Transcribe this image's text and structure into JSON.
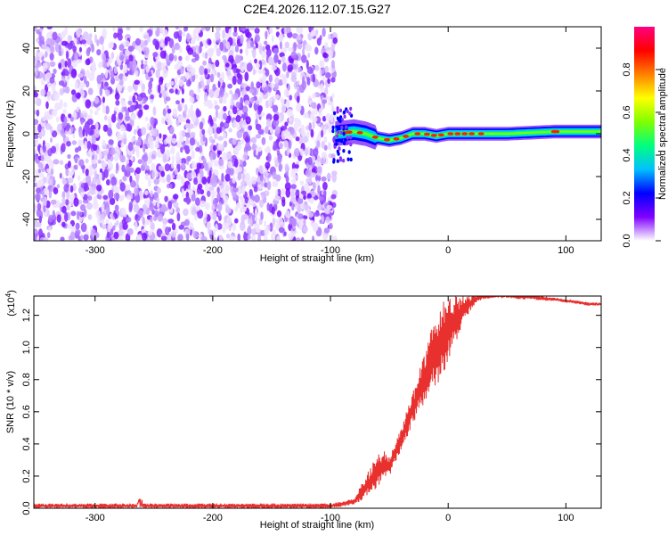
{
  "title": "C2E4.2026.112.07.15.G27",
  "chart_data": [
    {
      "type": "heatmap",
      "name": "spectrogram",
      "title": "C2E4.2026.112.07.15.G27",
      "xlabel": "Height of straight line (km)",
      "ylabel": "Frequency (Hz)",
      "xlim": [
        -352,
        130
      ],
      "ylim": [
        -50,
        50
      ],
      "x_ticks": [
        -300,
        -200,
        -100,
        0,
        100
      ],
      "x_tick_labels": [
        "-300",
        "-200",
        "-100",
        "0",
        "100"
      ],
      "y_ticks": [
        -40,
        -20,
        0,
        20,
        40
      ],
      "y_tick_labels": [
        "-40",
        "-20",
        "0",
        "20",
        "40"
      ],
      "noise_region_x": [
        -352,
        -96
      ],
      "signal_region_x": [
        -96,
        130
      ],
      "signal_frequency_track": [
        {
          "x": -96,
          "y": 0
        },
        {
          "x": -80,
          "y": 1
        },
        {
          "x": -70,
          "y": 0
        },
        {
          "x": -60,
          "y": -2
        },
        {
          "x": -50,
          "y": -3
        },
        {
          "x": -40,
          "y": -2
        },
        {
          "x": -30,
          "y": 0
        },
        {
          "x": -20,
          "y": 0
        },
        {
          "x": -10,
          "y": -1
        },
        {
          "x": 0,
          "y": 0
        },
        {
          "x": 20,
          "y": 0
        },
        {
          "x": 50,
          "y": 0
        },
        {
          "x": 90,
          "y": 1
        },
        {
          "x": 130,
          "y": 1
        }
      ],
      "colorbar": {
        "label": "Normalized spectral amplitude",
        "range": [
          0,
          1
        ],
        "ticks": [
          0.0,
          0.2,
          0.4,
          0.6,
          0.8
        ],
        "tick_labels": [
          "0.0",
          "0.2",
          "0.4",
          "0.6",
          "0.8"
        ],
        "colors": [
          "#ffffff",
          "#8000ff",
          "#0000ff",
          "#00c0ff",
          "#00ff80",
          "#80ff00",
          "#ffff00",
          "#ff8000",
          "#ff0000",
          "#ff0080"
        ]
      }
    },
    {
      "type": "line",
      "name": "snr",
      "xlabel": "Height of straight line (km)",
      "ylabel": "SNR (10 * v/v)",
      "y_scale_label": "(x10",
      "y_scale_exponent": "4",
      "y_scale_suffix": ")",
      "xlim": [
        -352,
        130
      ],
      "ylim": [
        0,
        1.32
      ],
      "x_ticks": [
        -300,
        -200,
        -100,
        0,
        100
      ],
      "x_tick_labels": [
        "-300",
        "-200",
        "-100",
        "0",
        "100"
      ],
      "y_ticks": [
        0.0,
        0.2,
        0.4,
        0.6,
        0.8,
        1.0,
        1.2
      ],
      "y_tick_labels": [
        "0.0",
        "0.2",
        "0.4",
        "0.6",
        "0.8",
        "1.0",
        "1.2"
      ],
      "series_color": "#e8302e",
      "envelope": {
        "x": [
          -352,
          -260,
          -100,
          -80,
          -70,
          -60,
          -55,
          -50,
          -45,
          -40,
          -35,
          -30,
          -25,
          -20,
          -15,
          -10,
          -5,
          0,
          5,
          10,
          15,
          20,
          25,
          30,
          40,
          50,
          60,
          70,
          80,
          90,
          100,
          110,
          120,
          130
        ],
        "lower": [
          0.0,
          0.0,
          0.0,
          0.02,
          0.06,
          0.12,
          0.18,
          0.2,
          0.28,
          0.36,
          0.44,
          0.52,
          0.6,
          0.64,
          0.7,
          0.76,
          0.82,
          0.9,
          1.0,
          1.1,
          1.18,
          1.24,
          1.28,
          1.3,
          1.31,
          1.31,
          1.3,
          1.3,
          1.29,
          1.29,
          1.28,
          1.27,
          1.26,
          1.26
        ],
        "upper": [
          0.03,
          0.03,
          0.03,
          0.06,
          0.2,
          0.34,
          0.36,
          0.32,
          0.4,
          0.5,
          0.62,
          0.72,
          0.86,
          0.98,
          1.1,
          1.2,
          1.28,
          1.32,
          1.32,
          1.32,
          1.32,
          1.32,
          1.33,
          1.34,
          1.34,
          1.34,
          1.33,
          1.33,
          1.32,
          1.31,
          1.3,
          1.29,
          1.28,
          1.28
        ]
      }
    }
  ]
}
